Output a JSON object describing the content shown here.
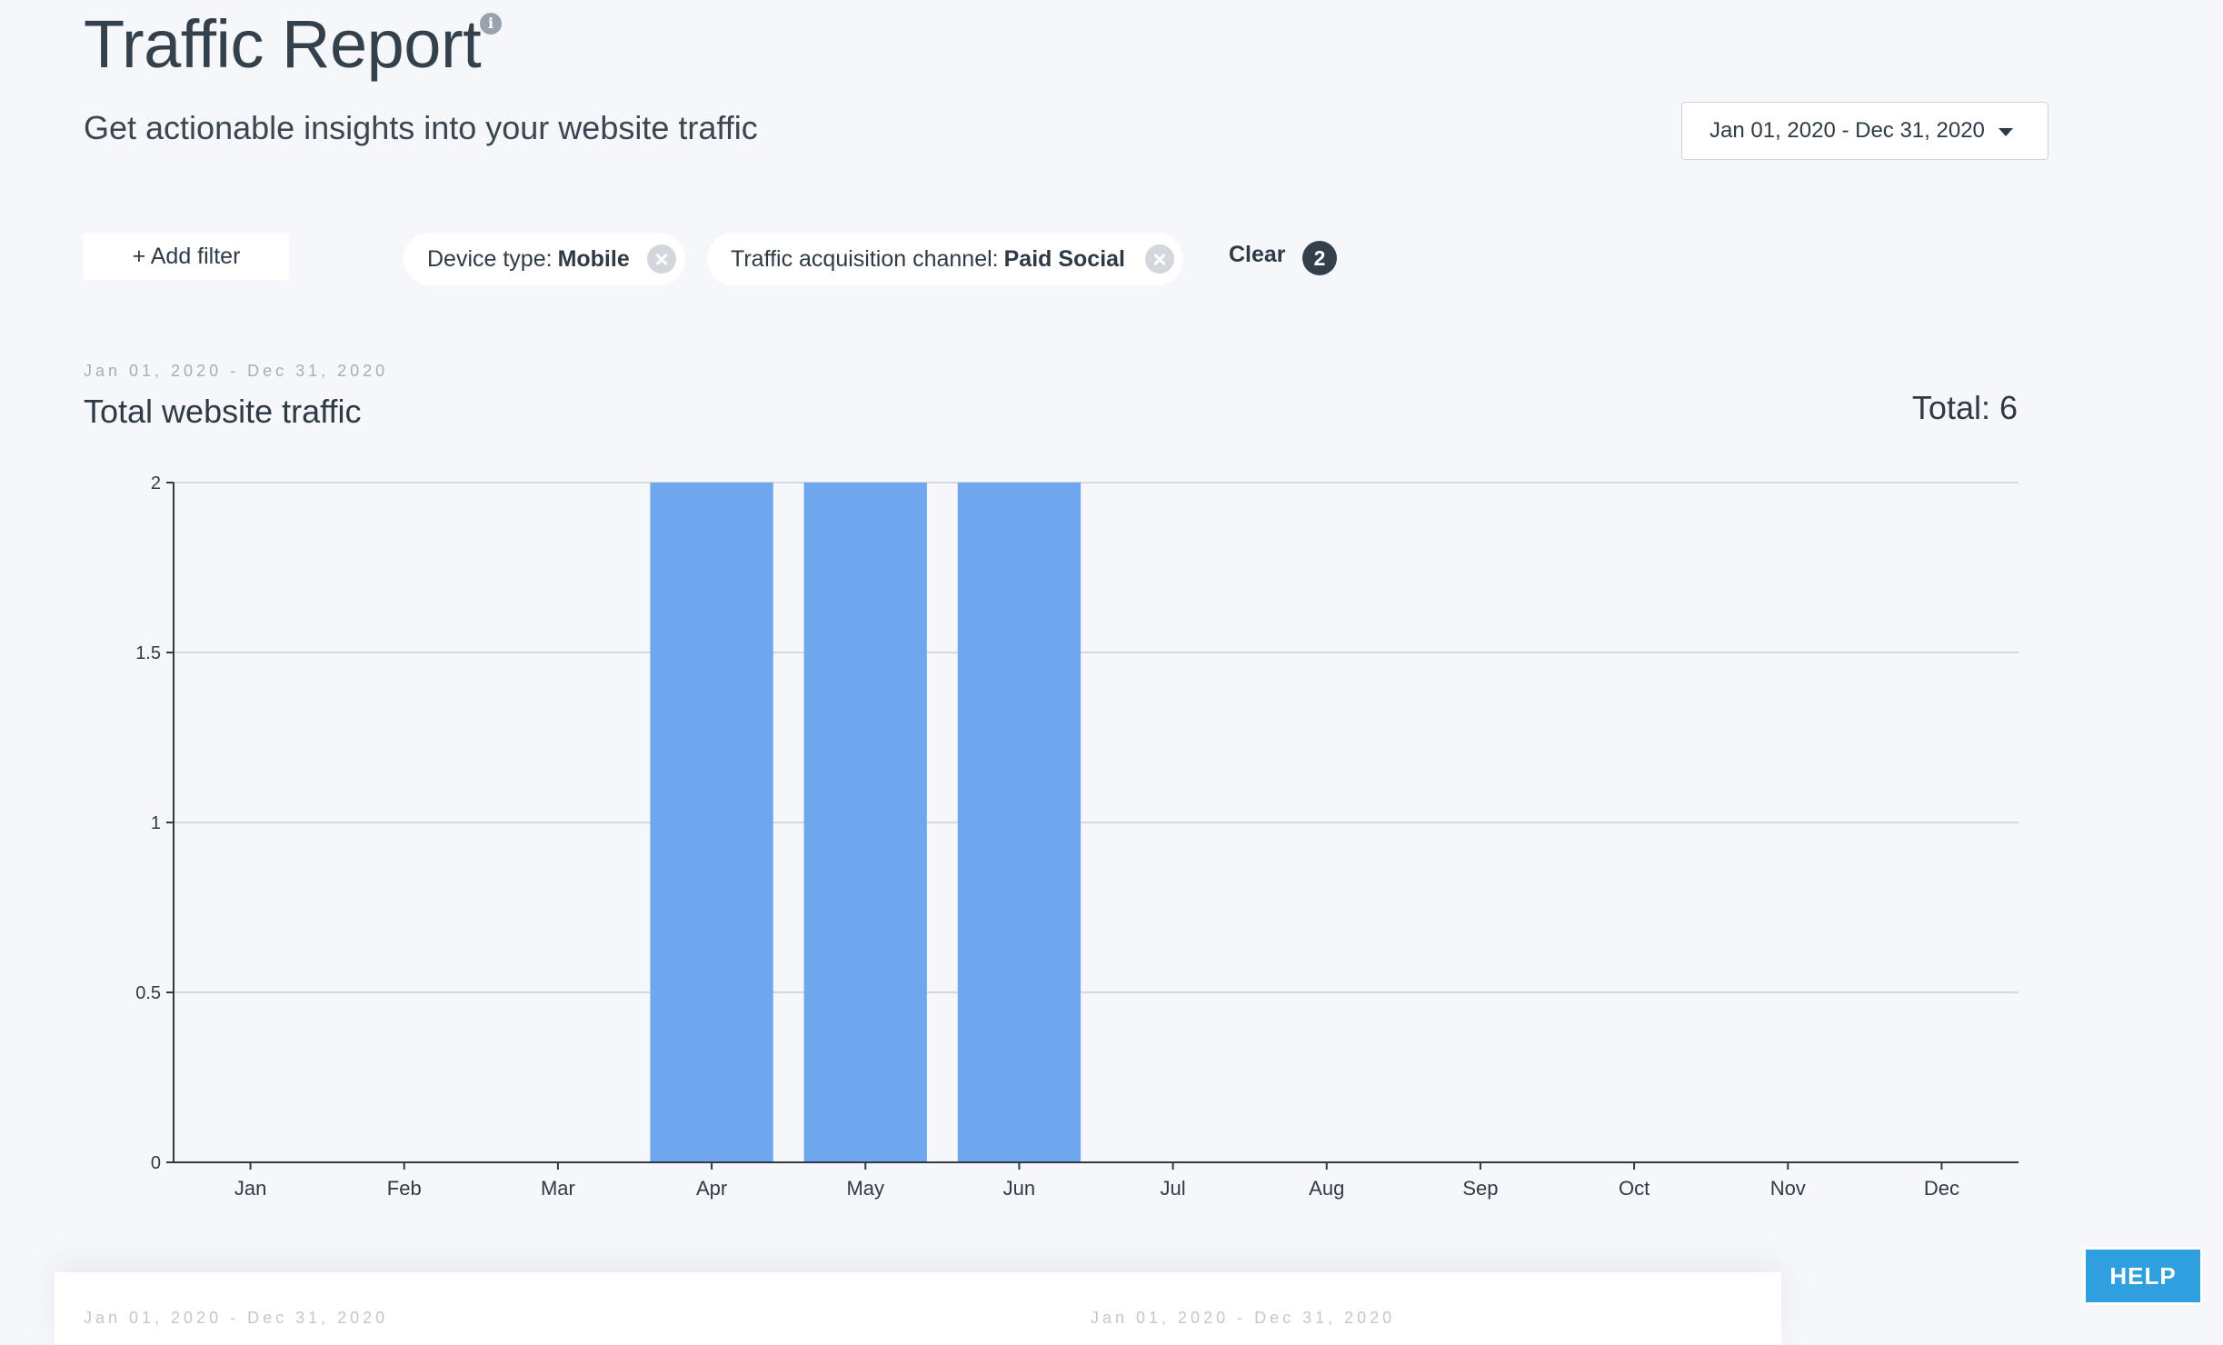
{
  "header": {
    "title": "Traffic Report",
    "subtitle": "Get actionable insights into your website traffic",
    "info_icon": "info-icon"
  },
  "date_picker": {
    "value": "Jan 01, 2020 - Dec 31, 2020",
    "icon": "chevron-down-icon"
  },
  "filters": {
    "add_label": "+ Add filter",
    "chips": [
      {
        "label": "Device type:",
        "value": "Mobile"
      },
      {
        "label": "Traffic acquisition channel:",
        "value": "Paid Social"
      }
    ],
    "clear_label": "Clear",
    "count": "2"
  },
  "chart_card": {
    "range": "Jan 01, 2020 - Dec 31, 2020",
    "title": "Total website traffic",
    "total": "Total: 6"
  },
  "chart_data": {
    "type": "bar",
    "title": "Total website traffic",
    "categories": [
      "Jan",
      "Feb",
      "Mar",
      "Apr",
      "May",
      "Jun",
      "Jul",
      "Aug",
      "Sep",
      "Oct",
      "Nov",
      "Dec"
    ],
    "values": [
      0,
      0,
      0,
      2,
      2,
      2,
      0,
      0,
      0,
      0,
      0,
      0
    ],
    "yticks": [
      "0",
      "0.5",
      "1",
      "1.5",
      "2"
    ],
    "ylim": [
      0,
      2
    ],
    "xlabel": "",
    "ylabel": "",
    "grid": true,
    "bar_color": "#6fa7ef"
  },
  "bottom": {
    "range_left": "Jan 01, 2020 - Dec 31, 2020",
    "range_right": "Jan 01, 2020 - Dec 31, 2020"
  },
  "help": {
    "label": "HELP",
    "color": "#2f9fe0"
  }
}
